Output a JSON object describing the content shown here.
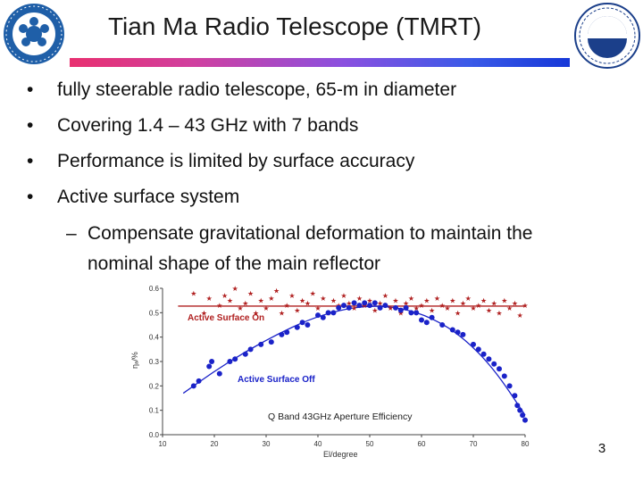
{
  "slide": {
    "title": "Tian Ma Radio Telescope (TMRT)",
    "page_number": "3",
    "bullets": [
      "fully steerable radio telescope, 65-m in diameter",
      "Covering 1.4 – 43 GHz with 7 bands",
      "Performance is limited by surface accuracy",
      "Active surface system"
    ],
    "sub_bullet_line1": "Compensate gravitational deformation to maintain the",
    "sub_bullet_line2": "nominal shape of the main reflector"
  },
  "logos": {
    "left": "Chinese Academy of Sciences emblem",
    "right": "Shanghai Astronomical Observatory emblem"
  },
  "chart_data": {
    "type": "scatter",
    "title": "Q Band 43GHz Aperture Efficiency",
    "xlabel": "El/degree",
    "ylabel": "ηₐ/%",
    "xlim": [
      10,
      80
    ],
    "ylim": [
      0.0,
      0.6
    ],
    "x_ticks": [
      "10",
      "20",
      "30",
      "40",
      "50",
      "60",
      "70",
      "80"
    ],
    "y_ticks": [
      "0.0",
      "0.1",
      "0.2",
      "0.3",
      "0.4",
      "0.5",
      "0.6"
    ],
    "grid": false,
    "colors": {
      "on": "#b02020",
      "off": "#1a22c8"
    },
    "series": [
      {
        "name": "Active Surface On",
        "marker": "star",
        "fit": {
          "type": "constant",
          "y": 0.527
        },
        "points": [
          [
            16,
            0.58
          ],
          [
            18,
            0.5
          ],
          [
            19,
            0.56
          ],
          [
            21,
            0.53
          ],
          [
            22,
            0.57
          ],
          [
            23,
            0.55
          ],
          [
            24,
            0.6
          ],
          [
            25,
            0.52
          ],
          [
            26,
            0.54
          ],
          [
            27,
            0.58
          ],
          [
            28,
            0.5
          ],
          [
            29,
            0.55
          ],
          [
            30,
            0.52
          ],
          [
            31,
            0.56
          ],
          [
            32,
            0.59
          ],
          [
            33,
            0.5
          ],
          [
            34,
            0.53
          ],
          [
            35,
            0.57
          ],
          [
            36,
            0.51
          ],
          [
            37,
            0.55
          ],
          [
            38,
            0.54
          ],
          [
            39,
            0.58
          ],
          [
            40,
            0.52
          ],
          [
            41,
            0.56
          ],
          [
            42,
            0.5
          ],
          [
            43,
            0.55
          ],
          [
            44,
            0.53
          ],
          [
            45,
            0.57
          ],
          [
            46,
            0.54
          ],
          [
            47,
            0.52
          ],
          [
            48,
            0.56
          ],
          [
            49,
            0.53
          ],
          [
            50,
            0.55
          ],
          [
            51,
            0.51
          ],
          [
            52,
            0.54
          ],
          [
            53,
            0.57
          ],
          [
            54,
            0.52
          ],
          [
            55,
            0.55
          ],
          [
            56,
            0.5
          ],
          [
            57,
            0.54
          ],
          [
            58,
            0.56
          ],
          [
            59,
            0.52
          ],
          [
            60,
            0.53
          ],
          [
            61,
            0.55
          ],
          [
            62,
            0.51
          ],
          [
            63,
            0.56
          ],
          [
            64,
            0.53
          ],
          [
            65,
            0.52
          ],
          [
            66,
            0.55
          ],
          [
            67,
            0.5
          ],
          [
            68,
            0.54
          ],
          [
            69,
            0.56
          ],
          [
            70,
            0.52
          ],
          [
            71,
            0.53
          ],
          [
            72,
            0.55
          ],
          [
            73,
            0.51
          ],
          [
            74,
            0.54
          ],
          [
            75,
            0.5
          ],
          [
            76,
            0.55
          ],
          [
            77,
            0.52
          ],
          [
            78,
            0.54
          ],
          [
            79,
            0.49
          ],
          [
            80,
            0.53
          ]
        ]
      },
      {
        "name": "Active Surface Off",
        "marker": "circle",
        "fit": {
          "type": "curve",
          "points": [
            [
              14,
              0.17
            ],
            [
              20,
              0.26
            ],
            [
              26,
              0.34
            ],
            [
              32,
              0.41
            ],
            [
              38,
              0.47
            ],
            [
              44,
              0.51
            ],
            [
              50,
              0.53
            ],
            [
              56,
              0.52
            ],
            [
              62,
              0.48
            ],
            [
              68,
              0.4
            ],
            [
              74,
              0.27
            ],
            [
              80,
              0.08
            ]
          ]
        },
        "points": [
          [
            16,
            0.2
          ],
          [
            17,
            0.22
          ],
          [
            19,
            0.28
          ],
          [
            19.5,
            0.3
          ],
          [
            21,
            0.25
          ],
          [
            23,
            0.3
          ],
          [
            24,
            0.31
          ],
          [
            26,
            0.33
          ],
          [
            27,
            0.35
          ],
          [
            29,
            0.37
          ],
          [
            31,
            0.38
          ],
          [
            33,
            0.41
          ],
          [
            34,
            0.42
          ],
          [
            36,
            0.44
          ],
          [
            37,
            0.46
          ],
          [
            38,
            0.45
          ],
          [
            40,
            0.49
          ],
          [
            41,
            0.48
          ],
          [
            42,
            0.5
          ],
          [
            43,
            0.5
          ],
          [
            44,
            0.52
          ],
          [
            45,
            0.53
          ],
          [
            46,
            0.52
          ],
          [
            47,
            0.54
          ],
          [
            48,
            0.53
          ],
          [
            49,
            0.54
          ],
          [
            50,
            0.53
          ],
          [
            51,
            0.54
          ],
          [
            52,
            0.52
          ],
          [
            53,
            0.53
          ],
          [
            55,
            0.52
          ],
          [
            56,
            0.51
          ],
          [
            57,
            0.52
          ],
          [
            58,
            0.5
          ],
          [
            59,
            0.5
          ],
          [
            60,
            0.47
          ],
          [
            61,
            0.46
          ],
          [
            62,
            0.48
          ],
          [
            64,
            0.45
          ],
          [
            66,
            0.43
          ],
          [
            67,
            0.42
          ],
          [
            68,
            0.41
          ],
          [
            70,
            0.37
          ],
          [
            71,
            0.35
          ],
          [
            72,
            0.33
          ],
          [
            73,
            0.31
          ],
          [
            74,
            0.29
          ],
          [
            75,
            0.27
          ],
          [
            76,
            0.24
          ],
          [
            77,
            0.2
          ],
          [
            78,
            0.16
          ],
          [
            78.5,
            0.12
          ],
          [
            79,
            0.1
          ],
          [
            79.5,
            0.08
          ],
          [
            80,
            0.06
          ]
        ]
      }
    ]
  }
}
